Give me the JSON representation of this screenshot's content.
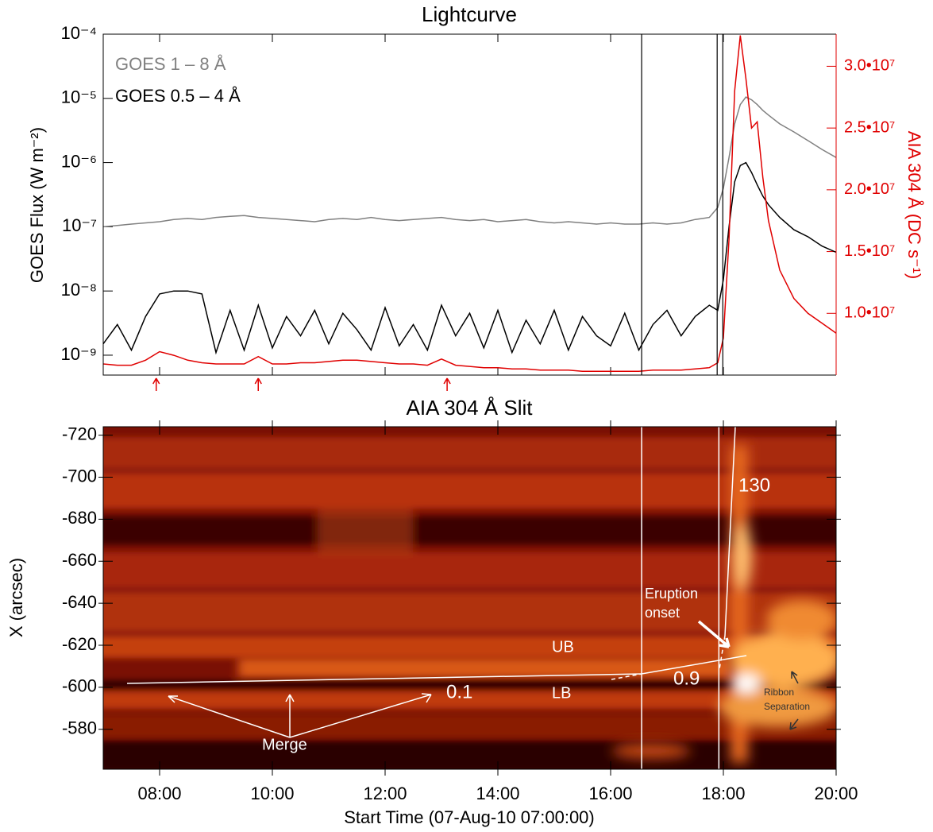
{
  "chart_data": [
    {
      "type": "line",
      "title": "Lightcurve",
      "ylabel": "GOES Flux (W m⁻²)",
      "y2label": "AIA 304 Å (DC s⁻¹)",
      "x": [
        7,
        7.25,
        7.5,
        7.75,
        8,
        8.25,
        8.5,
        8.75,
        9,
        9.25,
        9.5,
        9.75,
        10,
        10.25,
        10.5,
        10.75,
        11,
        11.25,
        11.5,
        11.75,
        12,
        12.25,
        12.5,
        12.75,
        13,
        13.25,
        13.5,
        13.75,
        14,
        14.25,
        14.5,
        14.75,
        15,
        15.25,
        15.5,
        15.75,
        16,
        16.25,
        16.5,
        16.75,
        17,
        17.25,
        17.5,
        17.75,
        17.9,
        18,
        18.1,
        18.2,
        18.3,
        18.4,
        18.5,
        18.6,
        18.7,
        18.8,
        19,
        19.25,
        19.5,
        19.75,
        20
      ],
      "series": [
        {
          "name": "GOES 1 – 8 Å",
          "color": "#808080",
          "values": [
            1e-07,
            1.05e-07,
            1.1e-07,
            1.15e-07,
            1.2e-07,
            1.3e-07,
            1.35e-07,
            1.3e-07,
            1.4e-07,
            1.45e-07,
            1.5e-07,
            1.4e-07,
            1.35e-07,
            1.3e-07,
            1.25e-07,
            1.2e-07,
            1.3e-07,
            1.35e-07,
            1.3e-07,
            1.4e-07,
            1.3e-07,
            1.25e-07,
            1.3e-07,
            1.35e-07,
            1.4e-07,
            1.3e-07,
            1.25e-07,
            1.3e-07,
            1.2e-07,
            1.25e-07,
            1.3e-07,
            1.2e-07,
            1.15e-07,
            1.2e-07,
            1.15e-07,
            1.1e-07,
            1.15e-07,
            1.1e-07,
            1.1e-07,
            1.15e-07,
            1.1e-07,
            1.15e-07,
            1.3e-07,
            1.4e-07,
            2e-07,
            4e-07,
            1.2e-06,
            4e-06,
            8e-06,
            1.05e-05,
            9.5e-06,
            8e-06,
            6.5e-06,
            5.5e-06,
            4e-06,
            3e-06,
            2.2e-06,
            1.6e-06,
            1.2e-06
          ]
        },
        {
          "name": "GOES 0.5 – 4 Å",
          "color": "#000000",
          "values": [
            1.5e-09,
            3e-09,
            1.2e-09,
            4e-09,
            9e-09,
            1e-08,
            1e-08,
            9e-09,
            1.1e-09,
            5e-09,
            1.2e-09,
            6e-09,
            1.3e-09,
            4e-09,
            2e-09,
            5e-09,
            1.5e-09,
            4.5e-09,
            2.5e-09,
            1.2e-09,
            5.5e-09,
            1.4e-09,
            3e-09,
            1.2e-09,
            6e-09,
            2e-09,
            4.5e-09,
            1.3e-09,
            5e-09,
            1.1e-09,
            3.5e-09,
            1.5e-09,
            5e-09,
            1.2e-09,
            4e-09,
            2e-09,
            1.4e-09,
            4.5e-09,
            1.2e-09,
            3e-09,
            5e-09,
            2e-09,
            4e-09,
            6e-09,
            5e-09,
            1.5e-08,
            1e-07,
            5e-07,
            9e-07,
            1e-06,
            7e-07,
            4.5e-07,
            3e-07,
            2.2e-07,
            1.4e-07,
            9e-08,
            7e-08,
            5e-08,
            4e-08
          ]
        },
        {
          "color": "#e00000",
          "axis": "y2",
          "values": [
            5900000.0,
            5800000.0,
            5800000.0,
            6200000.0,
            6900000.0,
            6600000.0,
            6200000.0,
            6000000.0,
            5900000.0,
            5900000.0,
            5900000.0,
            6500000.0,
            5900000.0,
            5900000.0,
            6000000.0,
            6000000.0,
            6100000.0,
            6200000.0,
            6200000.0,
            6100000.0,
            6000000.0,
            5900000.0,
            5900000.0,
            5800000.0,
            6300000.0,
            5800000.0,
            5700000.0,
            5600000.0,
            5600000.0,
            5500000.0,
            5500000.0,
            5400000.0,
            5400000.0,
            5400000.0,
            5300000.0,
            5300000.0,
            5300000.0,
            5300000.0,
            5300000.0,
            5400000.0,
            5400000.0,
            5400000.0,
            5500000.0,
            5600000.0,
            6000000.0,
            8000000.0,
            16000000.0,
            28000000.0,
            32500000.0,
            29000000.0,
            25000000.0,
            25500000.0,
            21000000.0,
            17500000.0,
            13500000.0,
            11200000.0,
            10000000.0,
            9200000.0,
            8400000.0
          ]
        }
      ],
      "xlim": [
        7,
        20
      ],
      "xticks": [
        8,
        10,
        12,
        14,
        16,
        18,
        20
      ],
      "log_y": true,
      "ylim": [
        4.9e-10,
        0.0001
      ],
      "yticks": [
        {
          "value": 1e-09,
          "label": "10⁻⁹"
        },
        {
          "value": 1e-08,
          "label": "10⁻⁸"
        },
        {
          "value": 1e-07,
          "label": "10⁻⁷"
        },
        {
          "value": 1e-06,
          "label": "10⁻⁶"
        },
        {
          "value": 1e-05,
          "label": "10⁻⁵"
        },
        {
          "value": 0.0001,
          "label": "10⁻⁴"
        }
      ],
      "y2lim": [
        5000000.0,
        32600000.0
      ],
      "y2ticks": [
        {
          "value": 10000000.0,
          "label": "1.0•10⁷"
        },
        {
          "value": 15000000.0,
          "label": "1.5•10⁷"
        },
        {
          "value": 20000000.0,
          "label": "2.0•10⁷"
        },
        {
          "value": 25000000.0,
          "label": "2.5•10⁷"
        },
        {
          "value": 30000000.0,
          "label": "3.0•10⁷"
        }
      ],
      "vlines": [
        16.55,
        17.89,
        17.99
      ],
      "arrows": [
        7.94,
        9.75,
        13.1
      ]
    },
    {
      "type": "image",
      "title": "AIA 304 Å Slit",
      "ylabel": "X (arcsec)",
      "xlabel": "Start Time (07-Aug-10 07:00:00)",
      "xlim": [
        7,
        20
      ],
      "xticks": [
        {
          "value": 8,
          "label": "08:00"
        },
        {
          "value": 10,
          "label": "10:00"
        },
        {
          "value": 12,
          "label": "12:00"
        },
        {
          "value": 14,
          "label": "14:00"
        },
        {
          "value": 16,
          "label": "16:00"
        },
        {
          "value": 18,
          "label": "18:00"
        },
        {
          "value": 20,
          "label": "20:00"
        }
      ],
      "ylim": [
        -561,
        -724
      ],
      "yticks": [
        -720,
        -700,
        -680,
        -660,
        -640,
        -620,
        -600,
        -580
      ],
      "vlines": [
        16.55,
        17.92
      ],
      "annotations": [
        "130",
        "Eruption",
        "onset",
        "UB",
        "LB",
        "0.9",
        "0.1",
        "Merge",
        "Ribbon",
        "Separation"
      ]
    }
  ]
}
